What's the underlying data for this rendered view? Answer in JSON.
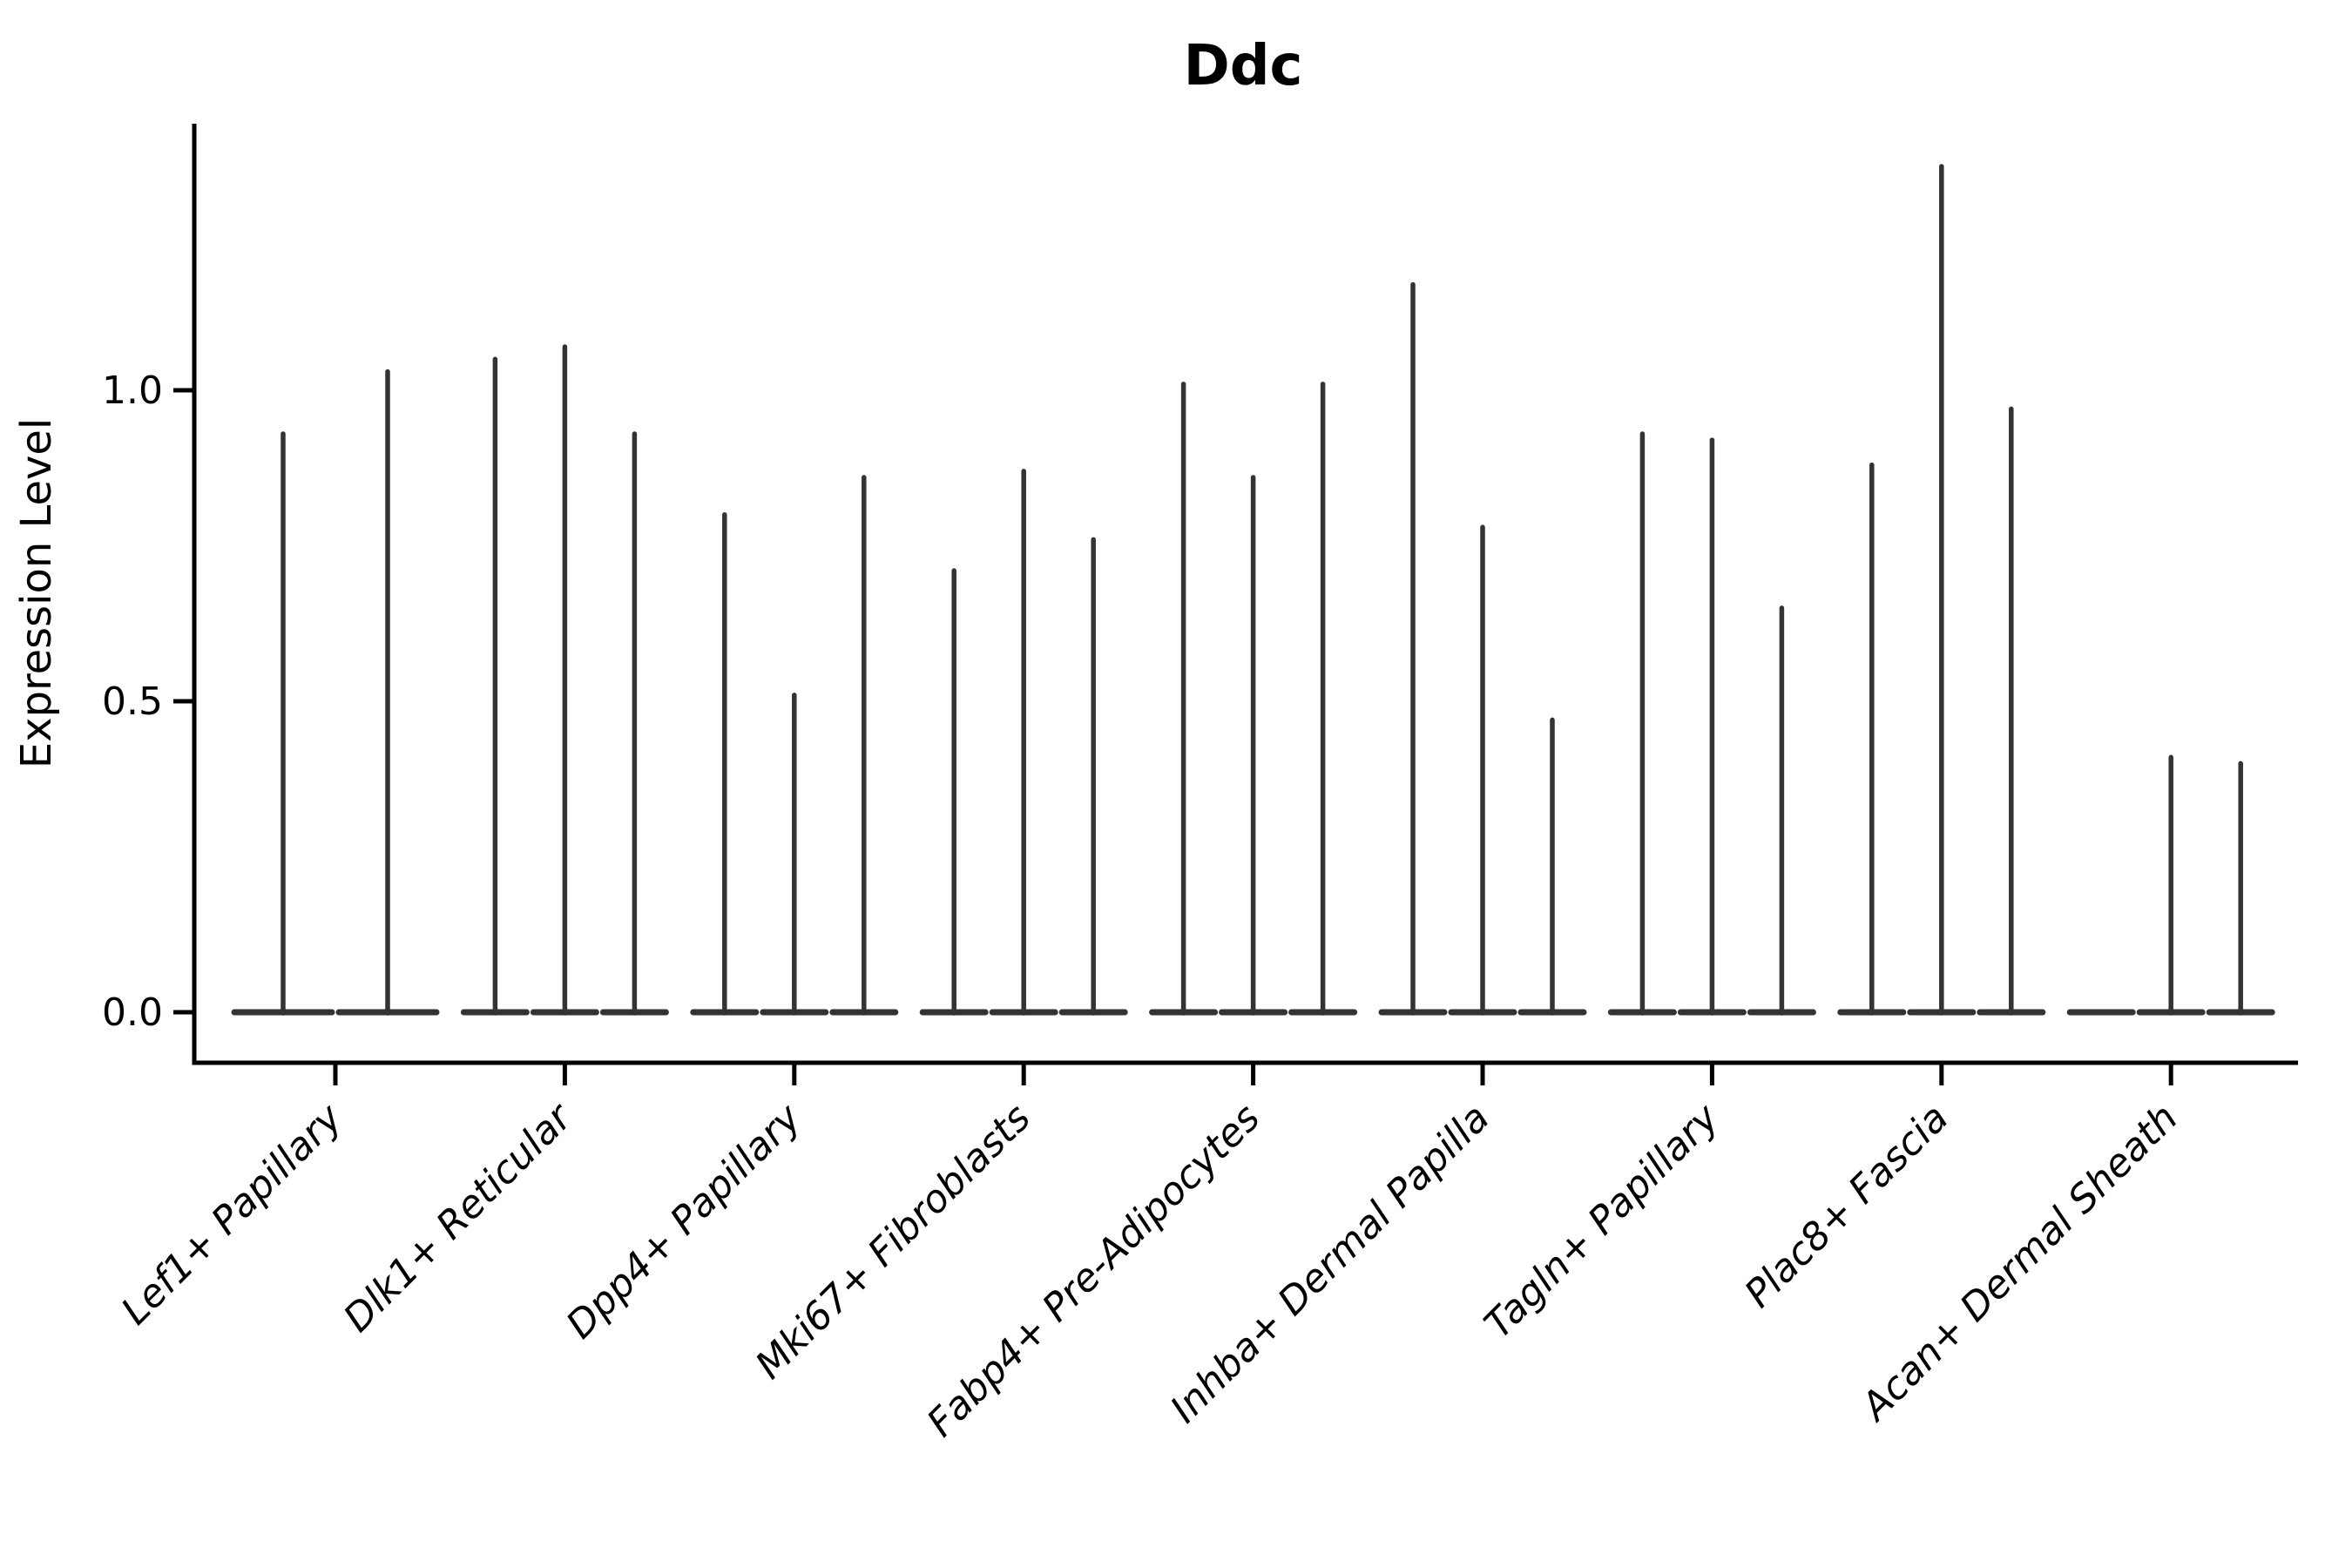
{
  "chart_data": {
    "type": "violin",
    "title": "Ddc",
    "ylabel": "Expression Level",
    "xlabel": "",
    "ytick_labels": [
      "0.0",
      "0.5",
      "1.0"
    ],
    "ytick_values": [
      0.0,
      0.5,
      1.0
    ],
    "ylim": [
      -0.08,
      1.43
    ],
    "grid": false,
    "legend_position": "none",
    "violin_shape": "needle-thin violins: density concentrated at 0 (wide flat base) with a thin spike up to each violin maximum",
    "groups": [
      {
        "label": "Lef1+ Papillary",
        "violin_maxima": [
          0.93,
          1.03
        ]
      },
      {
        "label": "Dlk1+ Reticular",
        "violin_maxima": [
          1.05,
          1.07,
          0.93
        ]
      },
      {
        "label": "Dpp4+ Papillary",
        "violin_maxima": [
          0.8,
          0.51,
          0.86
        ]
      },
      {
        "label": "Mki67+ Fibroblasts",
        "violin_maxima": [
          0.71,
          0.87,
          0.76
        ]
      },
      {
        "label": "Fabp4+ Pre-Adipocytes",
        "violin_maxima": [
          1.01,
          0.86,
          1.01
        ]
      },
      {
        "label": "Inhba+ Dermal Papilla",
        "violin_maxima": [
          1.17,
          0.78,
          0.47
        ]
      },
      {
        "label": "Tagln+ Papillary",
        "violin_maxima": [
          0.93,
          0.92,
          0.65
        ]
      },
      {
        "label": "Plac8+ Fascia",
        "violin_maxima": [
          0.88,
          1.36,
          0.97
        ]
      },
      {
        "label": "Acan+ Dermal Sheath",
        "violin_maxima": [
          0.0,
          0.41,
          0.4
        ]
      }
    ],
    "colors": {
      "violin": "#333333",
      "axis": "#000000",
      "text": "#000000",
      "background": "#ffffff"
    }
  }
}
